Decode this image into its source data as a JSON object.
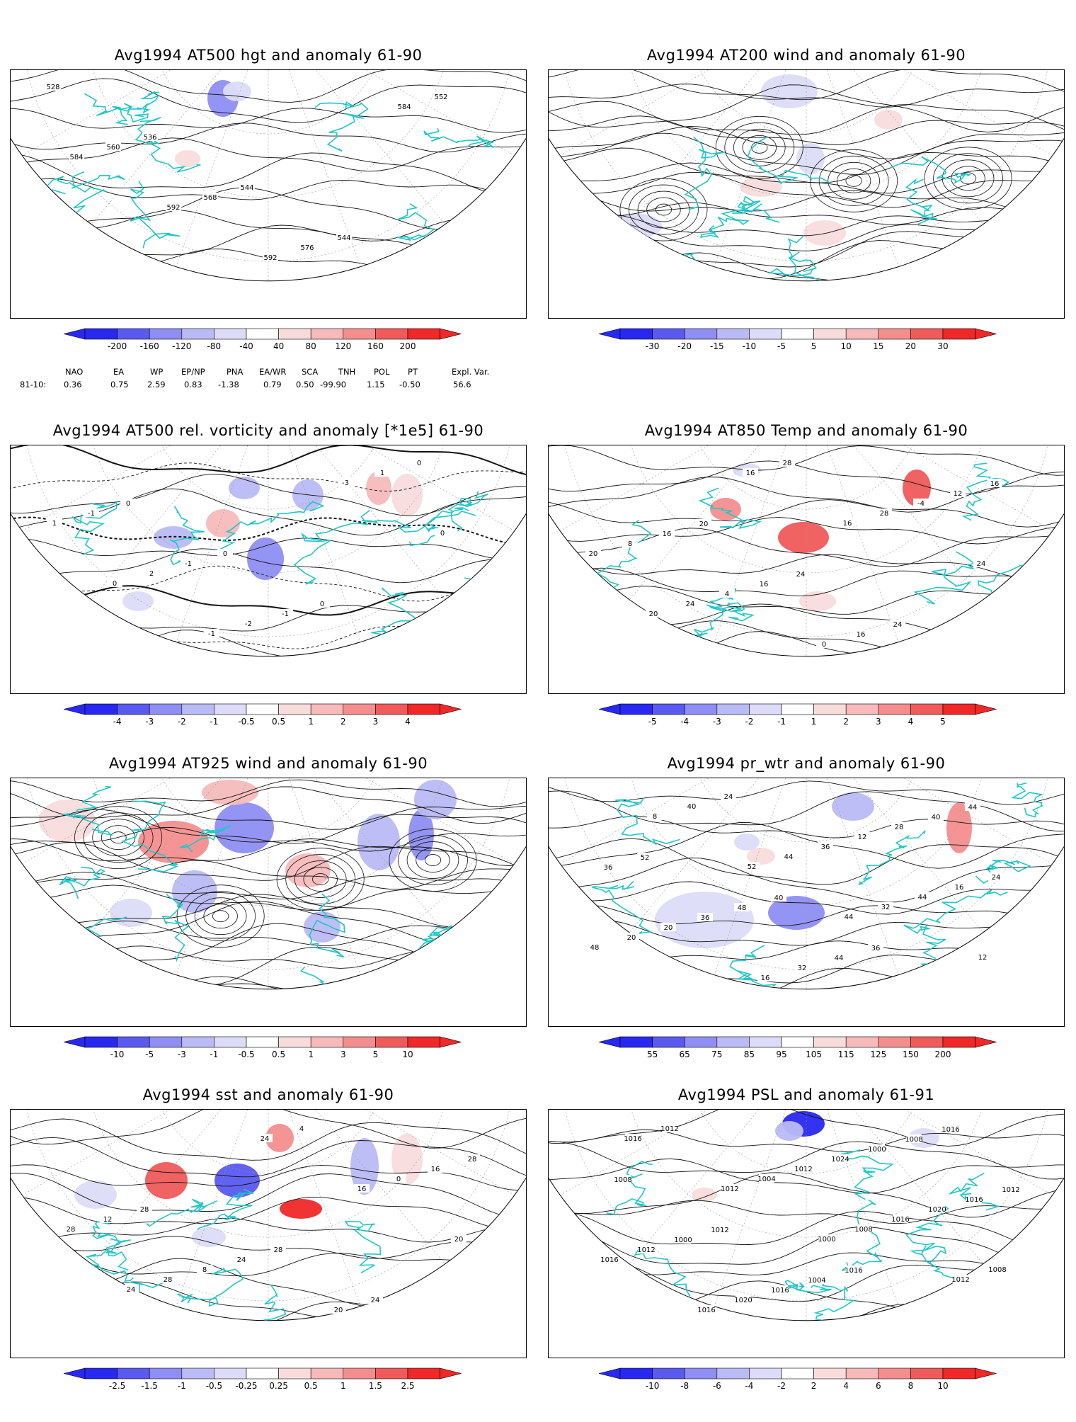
{
  "palette": {
    "neg": [
      "#2828f0",
      "#5a5af0",
      "#8e8ef4",
      "#babaf6",
      "#dcdcf8"
    ],
    "pos": [
      "#f8dcdc",
      "#f6baba",
      "#f48e8e",
      "#f05a5a",
      "#f02828"
    ],
    "coast": "#22c6c6",
    "contour": "#111111"
  },
  "panels": [
    {
      "id": "hgt500",
      "title": "Avg1994 AT500 hgt and anomaly 61-90",
      "contour_labels": [
        "528",
        "536",
        "544",
        "544",
        "552",
        "560",
        "568",
        "576",
        "584",
        "584",
        "592",
        "592"
      ],
      "cbar_ticks": [
        "-200",
        "-160",
        "-120",
        "-80",
        "-40",
        "40",
        "80",
        "120",
        "160",
        "200"
      ]
    },
    {
      "id": "wind200",
      "title": "Avg1994 AT200 wind and anomaly 61-90",
      "contour_labels": [],
      "cbar_ticks": [
        "-30",
        "-20",
        "-15",
        "-10",
        "-5",
        "5",
        "10",
        "15",
        "20",
        "30"
      ]
    },
    {
      "id": "vort500",
      "title": "Avg1994 AT500 rel. vorticity and anomaly [*1e5] 61-90",
      "contour_labels": [
        "0",
        "0",
        "0",
        "0",
        "-1",
        "-1",
        "-1",
        "1",
        "1",
        "2",
        "-2",
        "-3",
        "0",
        "0",
        "-1"
      ],
      "cbar_ticks": [
        "-4",
        "-3",
        "-2",
        "-1",
        "-0.5",
        "0.5",
        "1",
        "2",
        "3",
        "4"
      ]
    },
    {
      "id": "temp850",
      "title": "Avg1994 AT850 Temp and anomaly 61-90",
      "contour_labels": [
        "20",
        "24",
        "24",
        "16",
        "16",
        "16",
        "16",
        "12",
        "8",
        "4",
        "0",
        "-4",
        "20",
        "24",
        "28",
        "28",
        "24",
        "20",
        "16",
        "16"
      ],
      "cbar_ticks": [
        "-5",
        "-4",
        "-3",
        "-2",
        "-1",
        "1",
        "2",
        "3",
        "4",
        "5"
      ]
    },
    {
      "id": "wind925",
      "title": "Avg1994 AT925 wind and anomaly 61-90",
      "contour_labels": [],
      "cbar_ticks": [
        "-10",
        "-5",
        "-3",
        "-1",
        "-0.5",
        "0.5",
        "1",
        "3",
        "5",
        "10"
      ]
    },
    {
      "id": "prwtr",
      "title": "Avg1994 pr_wtr and anomaly 61-90",
      "contour_labels": [
        "40",
        "36",
        "44",
        "52",
        "48",
        "44",
        "40",
        "36",
        "36",
        "32",
        "28",
        "24",
        "20",
        "16",
        "12",
        "16",
        "20",
        "24",
        "36",
        "44",
        "48",
        "40",
        "44",
        "32",
        "12",
        "8",
        "52",
        "44"
      ],
      "cbar_ticks": [
        "55",
        "65",
        "75",
        "85",
        "95",
        "105",
        "115",
        "125",
        "150",
        "200"
      ]
    },
    {
      "id": "sst",
      "title": "Avg1994 sst and anomaly 61-90",
      "contour_labels": [
        "28",
        "24",
        "28",
        "28",
        "24",
        "20",
        "16",
        "12",
        "8",
        "4",
        "0",
        "28",
        "28",
        "24",
        "16",
        "20",
        "24"
      ],
      "cbar_ticks": [
        "-2.5",
        "-1.5",
        "-1",
        "-0.5",
        "-0.25",
        "0.25",
        "0.5",
        "1",
        "1.5",
        "2.5"
      ]
    },
    {
      "id": "psl",
      "title": "Avg1994 PSL and anomaly 61-91",
      "contour_labels": [
        "1016",
        "1016",
        "1008",
        "1012",
        "1004",
        "1008",
        "1012",
        "1000",
        "1016",
        "1000",
        "1016",
        "1012",
        "1020",
        "1024",
        "1020",
        "1016",
        "1016",
        "1012",
        "1016",
        "1008",
        "1012",
        "1004",
        "1008",
        "1012",
        "1016",
        "1012",
        "1000"
      ],
      "cbar_ticks": [
        "-10",
        "-8",
        "-6",
        "-4",
        "-2",
        "2",
        "4",
        "6",
        "8",
        "10"
      ]
    }
  ],
  "indices": {
    "headers": [
      "NAO",
      "EA",
      "WP",
      "EP/NP",
      "PNA",
      "EA/WR",
      "SCA",
      "TNH",
      "POL",
      "PT",
      "Expl. Var."
    ],
    "period": "81-10:",
    "values": [
      "0.36",
      "0.75",
      "2.59",
      "0.83",
      "-1.38",
      "0.79",
      "0.50",
      "-99.90",
      "1.15",
      "-0.50",
      "56.6"
    ]
  }
}
